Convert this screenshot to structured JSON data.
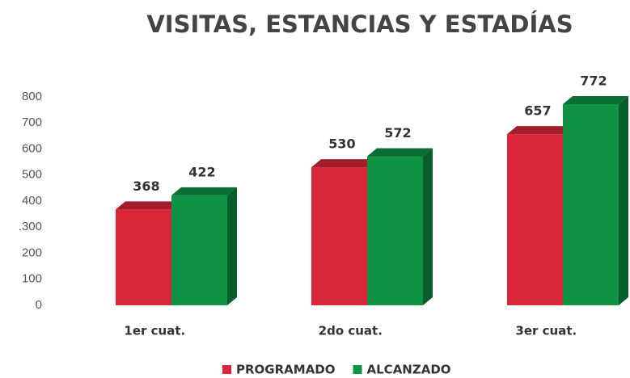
{
  "chart_data": {
    "type": "bar3d",
    "title": "VISITAS, ESTANCIAS Y ESTADÍAS",
    "categories": [
      "1er cuat.",
      "2do cuat.",
      "3er cuat."
    ],
    "series": [
      {
        "name": "PROGRAMADO",
        "color": "#d92638",
        "values": [
          368,
          530,
          657
        ]
      },
      {
        "name": "ALCANZADO",
        "color": "#0f9446",
        "values": [
          422,
          572,
          772
        ]
      }
    ],
    "ylim": [
      0,
      800
    ],
    "yticks": [
      0,
      100,
      200,
      {
        "value": 300,
        "label": ".300"
      },
      400,
      500,
      600,
      700,
      800
    ]
  }
}
